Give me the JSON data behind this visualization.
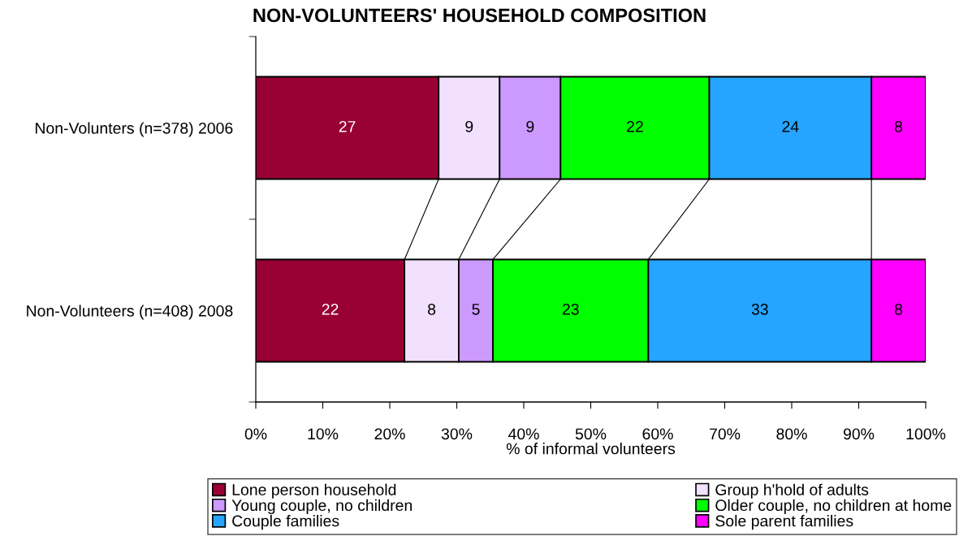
{
  "chart_data": {
    "type": "bar",
    "orientation": "horizontal",
    "stacked": true,
    "title": "NON-VOLUNTEERS' HOUSEHOLD COMPOSITION",
    "xlabel": "% of informal volunteers",
    "categories": [
      "Non-Volunters (n=378) 2006",
      "Non-Volunteers (n=408) 2008"
    ],
    "series": [
      {
        "name": "Lone person household",
        "color": "#990033",
        "values": [
          27.3,
          22.2
        ],
        "value_labels": [
          "27",
          "22"
        ]
      },
      {
        "name": "Group h'hold of adults",
        "color": "#f2e0ff",
        "values": [
          9.1,
          8.1
        ],
        "value_labels": [
          "9",
          "8"
        ]
      },
      {
        "name": "Young couple, no children",
        "color": "#cc99ff",
        "values": [
          9.1,
          5.1
        ],
        "value_labels": [
          "9",
          "5"
        ]
      },
      {
        "name": "Older couple, no children at home",
        "color": "#00ff00",
        "values": [
          22.2,
          23.2
        ],
        "value_labels": [
          "22",
          "23"
        ]
      },
      {
        "name": "Couple families",
        "color": "#25a5ff",
        "values": [
          24.2,
          33.3
        ],
        "value_labels": [
          "24",
          "33"
        ]
      },
      {
        "name": "Sole parent families",
        "color": "#ff00ff",
        "values": [
          8.1,
          8.1
        ],
        "value_labels": [
          "8",
          "8"
        ]
      }
    ],
    "xlim": [
      0,
      100
    ],
    "xticks": [
      {
        "value": 0,
        "label": "0%"
      },
      {
        "value": 10,
        "label": "10%"
      },
      {
        "value": 20,
        "label": "20%"
      },
      {
        "value": 30,
        "label": "30%"
      },
      {
        "value": 40,
        "label": "40%"
      },
      {
        "value": 50,
        "label": "50%"
      },
      {
        "value": 60,
        "label": "60%"
      },
      {
        "value": 70,
        "label": "70%"
      },
      {
        "value": 80,
        "label": "80%"
      },
      {
        "value": 90,
        "label": "90%"
      },
      {
        "value": 100,
        "label": "100%"
      }
    ],
    "grid": false,
    "legend": "bottom"
  }
}
